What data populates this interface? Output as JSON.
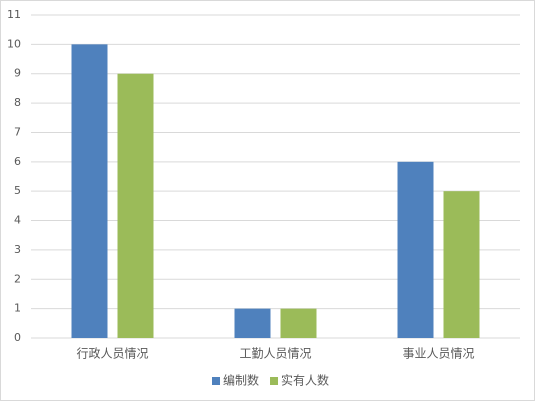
{
  "chart_data": {
    "type": "bar",
    "categories": [
      "行政人员情况",
      "工勤人员情况",
      "事业人员情况"
    ],
    "series": [
      {
        "name": "编制数",
        "color": "#4f81bd",
        "values": [
          10,
          1,
          6
        ]
      },
      {
        "name": "实有人数",
        "color": "#9bbb59",
        "values": [
          9,
          1,
          5
        ]
      }
    ],
    "ylim": [
      0,
      11
    ],
    "yticks": [
      0,
      1,
      2,
      3,
      4,
      5,
      6,
      7,
      8,
      9,
      10,
      11
    ],
    "grid": true,
    "legend": "bottom"
  }
}
